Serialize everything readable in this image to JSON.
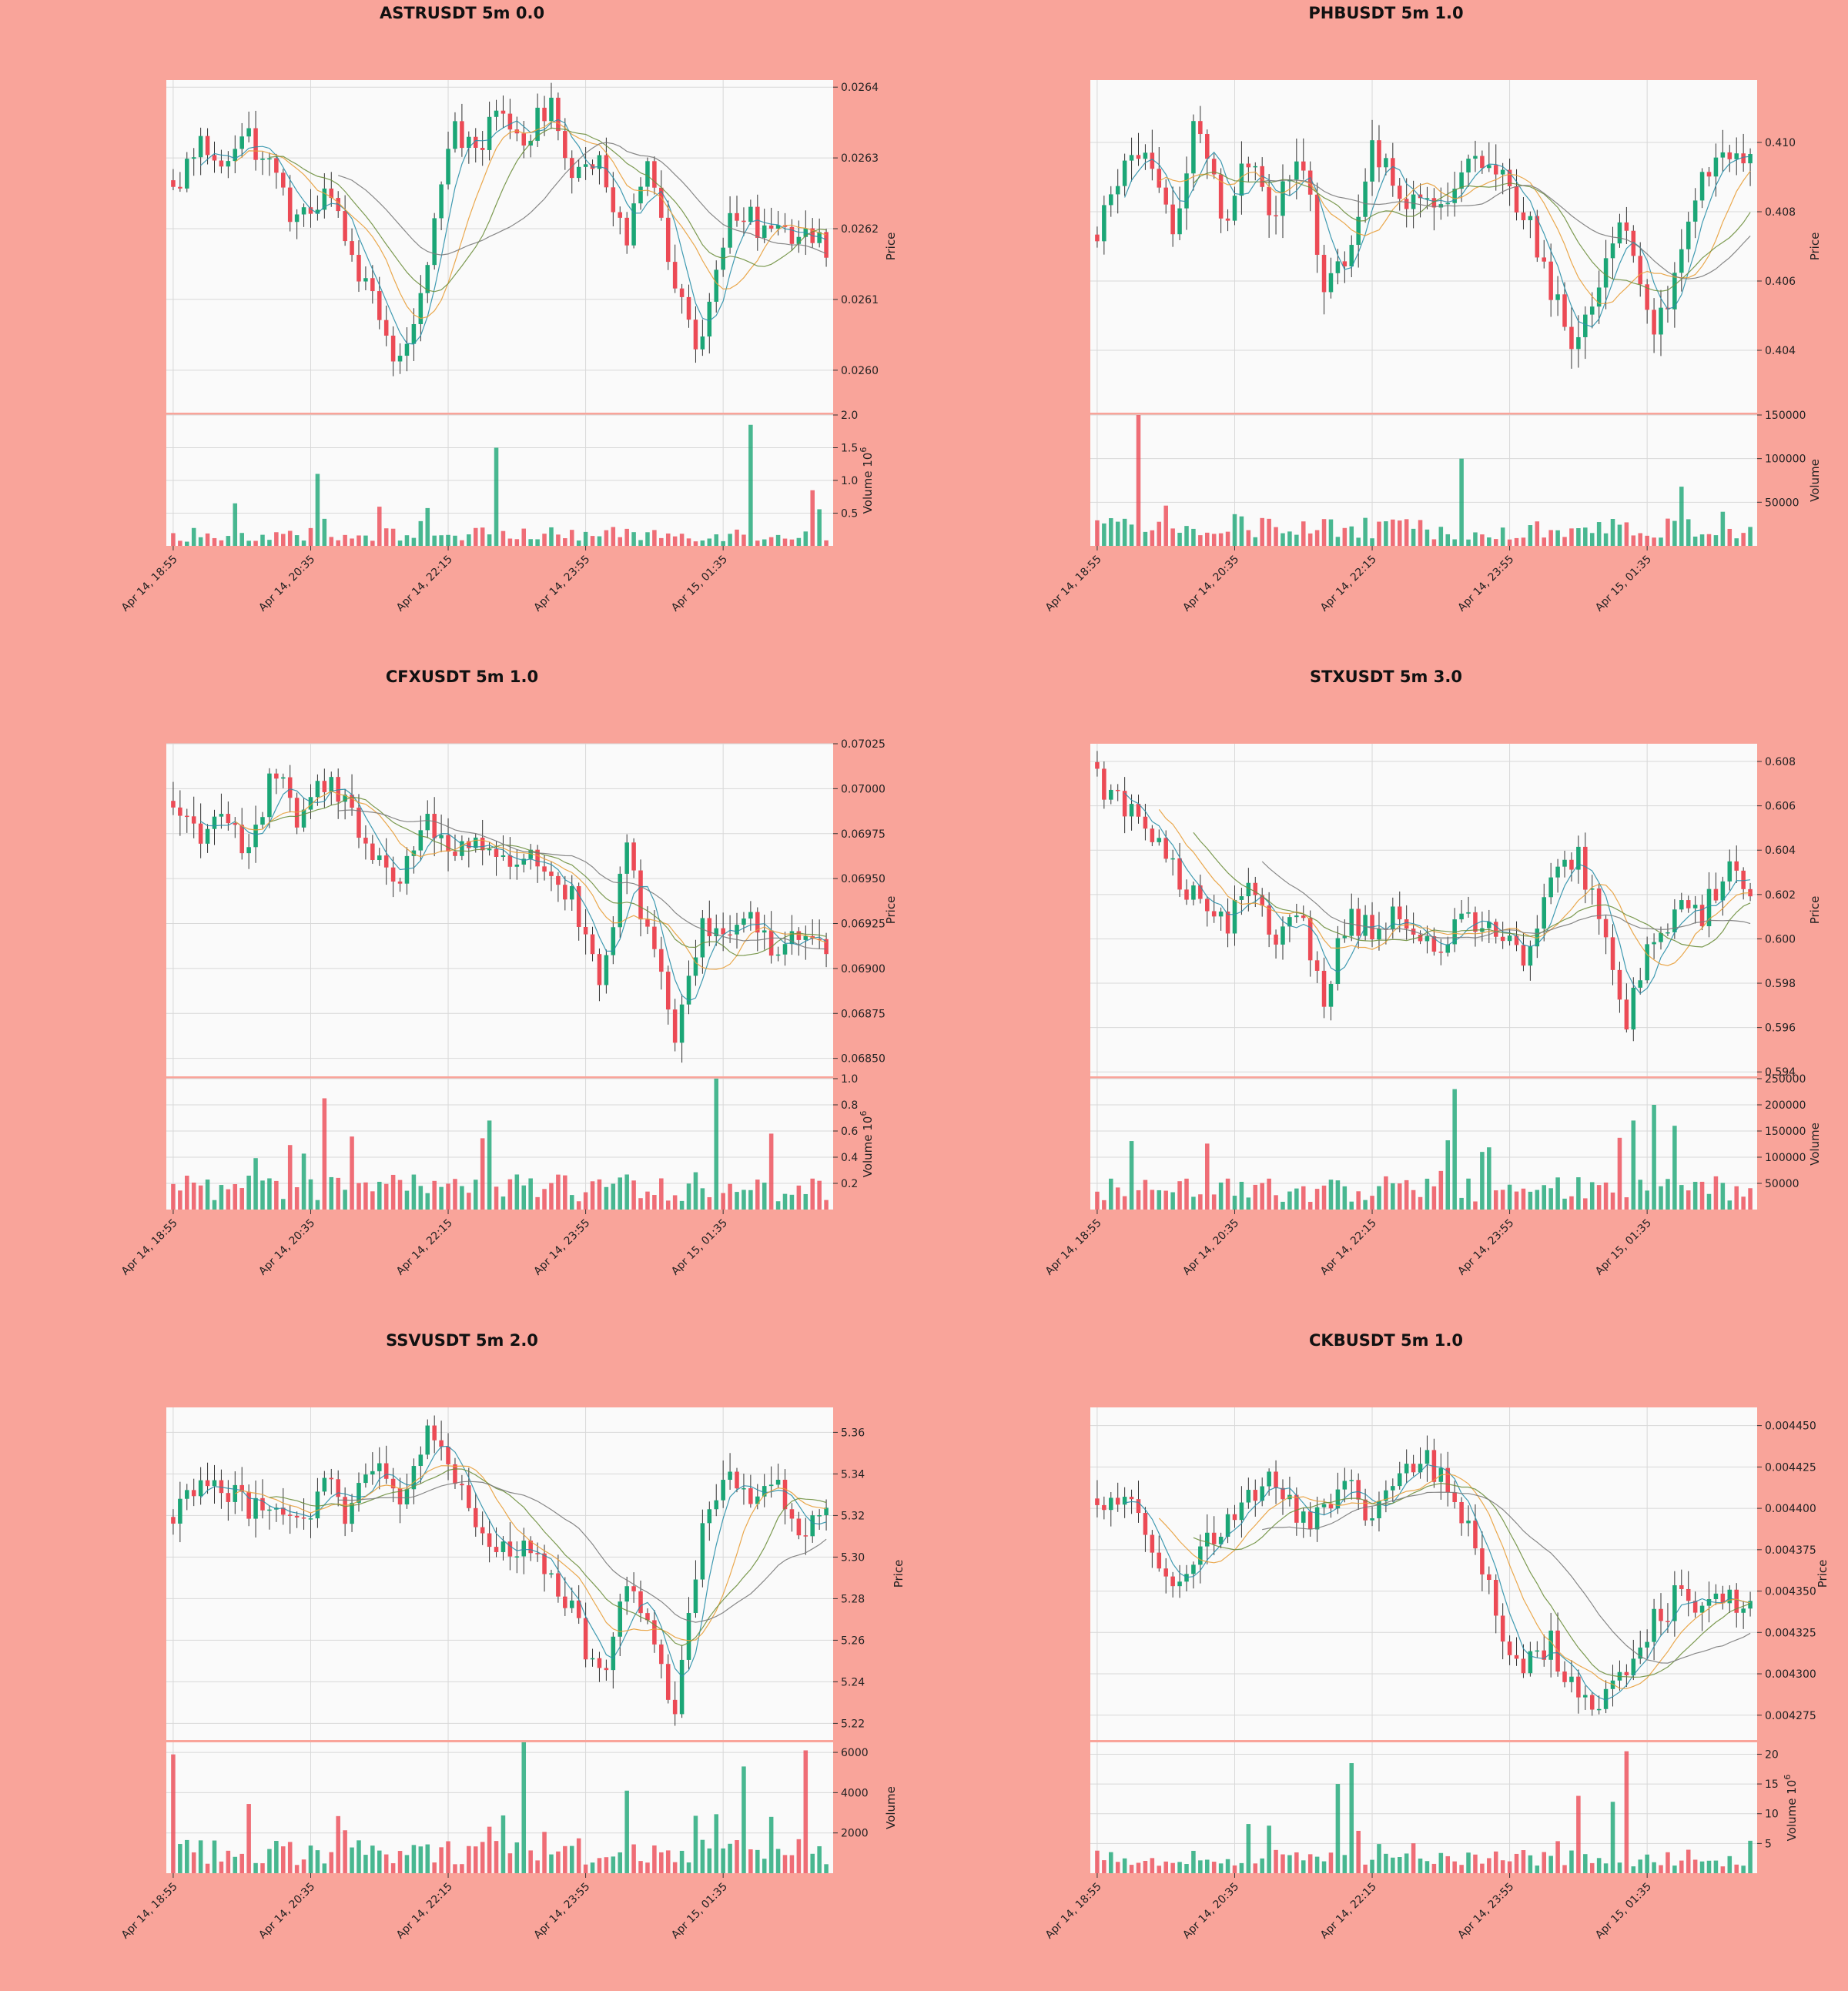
{
  "figure": {
    "background": "#F9A49A",
    "panel_bg": "#FAFAFA",
    "grid": "#D8D8D8",
    "up_color": "#1BA676",
    "down_color": "#EC4A55",
    "ma_colors": [
      "#2A8FA8",
      "#E89F3A",
      "#6E8F3E",
      "#7A7A7A"
    ]
  },
  "chart_data": [
    {
      "type": "candlestick",
      "title": "ASTRUSDT 5m 0.0",
      "ylabel": "Price",
      "vlabel": "Volume",
      "vexp": "6",
      "ylim": [
        0.02594,
        0.02641
      ],
      "yticks": [
        0.026,
        0.0261,
        0.0262,
        0.0263,
        0.0264
      ],
      "ytick_labels": [
        "0.0260",
        "0.0261",
        "0.0262",
        "0.0263",
        "0.0264"
      ],
      "vlim": [
        0,
        2.0
      ],
      "vticks": [
        0.5,
        1.0,
        1.5,
        2.0
      ],
      "vtick_labels": [
        "0.5",
        "1.0",
        "1.5",
        "2.0"
      ],
      "xtick_labels": [
        "Apr 14, 18:55",
        "Apr 14, 20:35",
        "Apr 14, 22:15",
        "Apr 14, 23:55",
        "Apr 15, 01:35"
      ],
      "keypoints": [
        0.02625,
        0.02632,
        0.0263,
        0.02633,
        0.02628,
        0.0262,
        0.02626,
        0.02617,
        0.02609,
        0.02601,
        0.02612,
        0.02634,
        0.02632,
        0.02635,
        0.02633,
        0.02637,
        0.02628,
        0.0263,
        0.02619,
        0.02629,
        0.02612,
        0.02603,
        0.0262,
        0.02621,
        0.02619,
        0.0262,
        0.02618
      ],
      "wick": 1.35e-05,
      "vol_base": 0.16,
      "vol_spikes": [
        [
          21,
          1.1
        ],
        [
          47,
          1.5
        ],
        [
          84,
          1.85
        ],
        [
          93,
          0.85
        ],
        [
          9,
          0.65
        ]
      ]
    },
    {
      "type": "candlestick",
      "title": "PHBUSDT 5m 1.0",
      "ylabel": "Price",
      "vlabel": "Volume",
      "vexp": "",
      "ylim": [
        0.4022,
        0.4118
      ],
      "yticks": [
        0.404,
        0.406,
        0.408,
        0.41
      ],
      "ytick_labels": [
        "0.404",
        "0.406",
        "0.408",
        "0.410"
      ],
      "vlim": [
        0,
        150000
      ],
      "vticks": [
        50000,
        100000,
        150000
      ],
      "vtick_labels": [
        "50000",
        "100000",
        "150000"
      ],
      "xtick_labels": [
        "Apr 14, 18:55",
        "Apr 14, 20:35",
        "Apr 14, 22:15",
        "Apr 14, 23:55",
        "Apr 15, 01:35"
      ],
      "keypoints": [
        0.4075,
        0.409,
        0.41,
        0.407,
        0.411,
        0.4075,
        0.4095,
        0.408,
        0.41,
        0.406,
        0.4065,
        0.41,
        0.4085,
        0.408,
        0.4085,
        0.4095,
        0.409,
        0.408,
        0.406,
        0.404,
        0.406,
        0.408,
        0.4045,
        0.406,
        0.409,
        0.41,
        0.4095
      ],
      "wick": 0.00035,
      "vol_base": 18000,
      "vol_spikes": [
        [
          6,
          150000
        ],
        [
          53,
          100000
        ],
        [
          100,
          35000
        ]
      ]
    },
    {
      "type": "candlestick",
      "title": "CFXUSDT 5m 1.0",
      "ylabel": "Price",
      "vlabel": "Volume",
      "vexp": "6",
      "ylim": [
        0.0684,
        0.07025
      ],
      "yticks": [
        0.0685,
        0.06875,
        0.069,
        0.06925,
        0.0695,
        0.06975,
        0.07,
        0.07025
      ],
      "ytick_labels": [
        "0.06850",
        "0.06875",
        "0.06900",
        "0.06925",
        "0.06950",
        "0.06975",
        "0.07000",
        "0.07025"
      ],
      "vlim": [
        0,
        1.0
      ],
      "vticks": [
        0.2,
        0.4,
        0.6,
        0.8,
        1.0
      ],
      "vtick_labels": [
        "0.2",
        "0.4",
        "0.6",
        "0.8",
        "1.0"
      ],
      "xtick_labels": [
        "Apr 14, 18:55",
        "Apr 14, 20:35",
        "Apr 14, 22:15",
        "Apr 14, 23:55",
        "Apr 15, 01:35"
      ],
      "keypoints": [
        0.0699,
        0.06975,
        0.0699,
        0.0696,
        0.0701,
        0.0698,
        0.07005,
        0.0699,
        0.06965,
        0.06945,
        0.06985,
        0.06965,
        0.06975,
        0.06955,
        0.06965,
        0.06955,
        0.06935,
        0.06885,
        0.06965,
        0.06915,
        0.0686,
        0.06925,
        0.0692,
        0.0693,
        0.0691,
        0.0692,
        0.0691
      ],
      "wick": 6e-05,
      "vol_base": 0.15,
      "vol_spikes": [
        [
          22,
          0.85
        ],
        [
          46,
          0.68
        ],
        [
          79,
          1.05
        ],
        [
          87,
          0.58
        ]
      ]
    },
    {
      "type": "candlestick",
      "title": "STXUSDT 5m 3.0",
      "ylabel": "Price",
      "vlabel": "Volume",
      "vexp": "",
      "ylim": [
        0.5938,
        0.6088
      ],
      "yticks": [
        0.594,
        0.596,
        0.598,
        0.6,
        0.602,
        0.604,
        0.606,
        0.608
      ],
      "ytick_labels": [
        "0.594",
        "0.596",
        "0.598",
        "0.600",
        "0.602",
        "0.604",
        "0.606",
        "0.608"
      ],
      "vlim": [
        0,
        250000
      ],
      "vticks": [
        50000,
        100000,
        150000,
        200000,
        250000
      ],
      "vtick_labels": [
        "50000",
        "100000",
        "150000",
        "200000",
        "250000"
      ],
      "xtick_labels": [
        "Apr 14, 18:55",
        "Apr 14, 20:35",
        "Apr 14, 22:15",
        "Apr 14, 23:55",
        "Apr 15, 01:35"
      ],
      "keypoints": [
        0.6072,
        0.606,
        0.605,
        0.603,
        0.6015,
        0.6005,
        0.602,
        0.6,
        0.6015,
        0.5975,
        0.601,
        0.6005,
        0.601,
        0.5995,
        0.6,
        0.601,
        0.6,
        0.599,
        0.602,
        0.604,
        0.601,
        0.596,
        0.5995,
        0.6015,
        0.601,
        0.603,
        0.6025
      ],
      "wick": 0.0004,
      "vol_base": 35000,
      "vol_spikes": [
        [
          52,
          230000
        ],
        [
          81,
          200000
        ],
        [
          78,
          170000
        ],
        [
          84,
          160000
        ]
      ]
    },
    {
      "type": "candlestick",
      "title": "SSVUSDT 5m 2.0",
      "ylabel": "Price",
      "vlabel": "Volume",
      "vexp": "",
      "ylim": [
        5.212,
        5.372
      ],
      "yticks": [
        5.22,
        5.24,
        5.26,
        5.28,
        5.3,
        5.32,
        5.34,
        5.36
      ],
      "ytick_labels": [
        "5.22",
        "5.24",
        "5.26",
        "5.28",
        "5.30",
        "5.32",
        "5.34",
        "5.36"
      ],
      "vlim": [
        0,
        6500
      ],
      "vticks": [
        2000,
        4000,
        6000
      ],
      "vtick_labels": [
        "2000",
        "4000",
        "6000"
      ],
      "xtick_labels": [
        "Apr 14, 18:55",
        "Apr 14, 20:35",
        "Apr 14, 22:15",
        "Apr 14, 23:55",
        "Apr 15, 01:35"
      ],
      "keypoints": [
        5.32,
        5.34,
        5.33,
        5.325,
        5.33,
        5.315,
        5.335,
        5.32,
        5.345,
        5.325,
        5.36,
        5.34,
        5.315,
        5.3,
        5.31,
        5.29,
        5.27,
        5.24,
        5.28,
        5.27,
        5.225,
        5.31,
        5.34,
        5.33,
        5.335,
        5.31,
        5.32
      ],
      "wick": 0.005,
      "vol_base": 1000,
      "vol_spikes": [
        [
          0,
          5900
        ],
        [
          51,
          7000
        ],
        [
          92,
          6100
        ],
        [
          83,
          5300
        ],
        [
          66,
          4100
        ]
      ]
    },
    {
      "type": "candlestick",
      "title": "CKBUSDT 5m 1.0",
      "ylabel": "Price",
      "vlabel": "Volume",
      "vexp": "6",
      "ylim": [
        0.00426,
        0.004461
      ],
      "yticks": [
        0.004275,
        0.0043,
        0.004325,
        0.00435,
        0.004375,
        0.0044,
        0.004425,
        0.00445
      ],
      "ytick_labels": [
        "0.004275",
        "0.004300",
        "0.004325",
        "0.004350",
        "0.004375",
        "0.004400",
        "0.004425",
        "0.004450"
      ],
      "vlim": [
        0,
        22
      ],
      "vticks": [
        5,
        10,
        15,
        20
      ],
      "vtick_labels": [
        "5",
        "10",
        "15",
        "20"
      ],
      "xtick_labels": [
        "Apr 14, 18:55",
        "Apr 14, 20:35",
        "Apr 14, 22:15",
        "Apr 14, 23:55",
        "Apr 15, 01:35"
      ],
      "keypoints": [
        0.0044,
        0.00441,
        0.00438,
        0.00436,
        0.004375,
        0.004385,
        0.00441,
        0.00442,
        0.00439,
        0.004395,
        0.00441,
        0.004395,
        0.00442,
        0.00443,
        0.00441,
        0.00438,
        0.00433,
        0.0043,
        0.00432,
        0.00429,
        0.00428,
        0.0043,
        0.00433,
        0.004345,
        0.00434,
        0.004345,
        0.004345
      ],
      "wick": 6e-06,
      "vol_base": 2.2,
      "vol_spikes": [
        [
          37,
          18.5
        ],
        [
          77,
          20.5
        ],
        [
          75,
          12
        ],
        [
          70,
          13
        ],
        [
          35,
          15
        ]
      ]
    }
  ]
}
